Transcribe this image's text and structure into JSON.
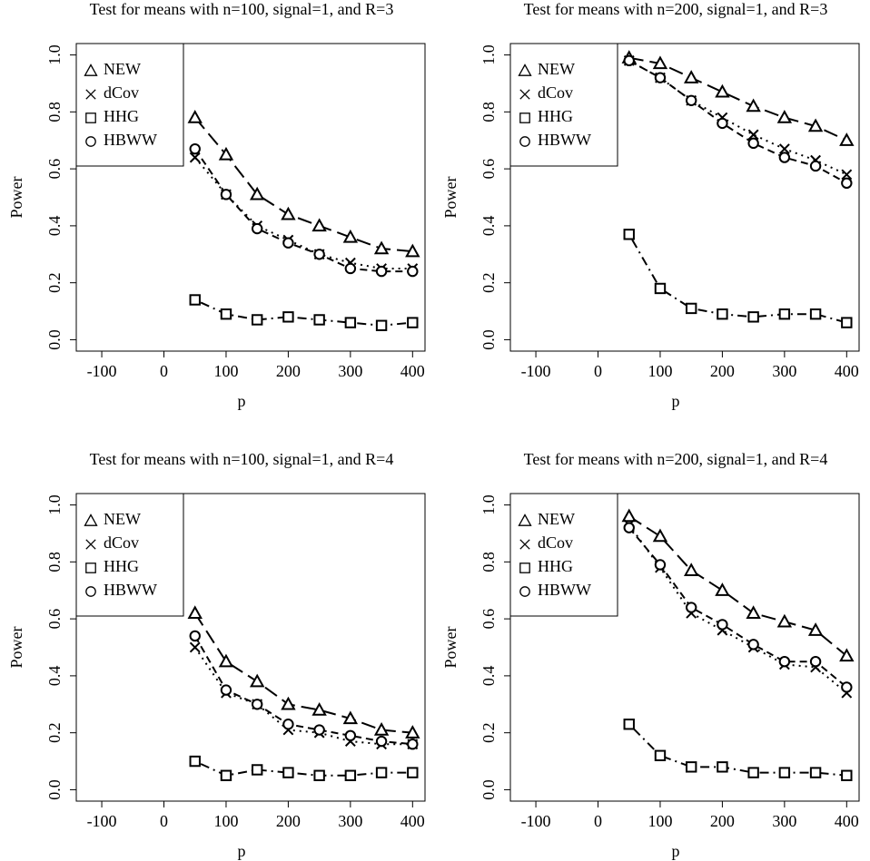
{
  "chart_data": [
    {
      "type": "line",
      "title": "Test for means with n=100, signal=1, and R=3",
      "x_label": "p",
      "y_label": "Power",
      "x": [
        50,
        100,
        150,
        200,
        250,
        300,
        350,
        400
      ],
      "series": [
        {
          "name": "NEW",
          "color": "#000000",
          "marker": "triangle",
          "dash": "longdash",
          "values": [
            0.78,
            0.65,
            0.51,
            0.44,
            0.4,
            0.36,
            0.32,
            0.31
          ]
        },
        {
          "name": "dCov",
          "color": "#000000",
          "marker": "cross",
          "dash": "dotted",
          "values": [
            0.64,
            0.51,
            0.4,
            0.35,
            0.3,
            0.27,
            0.25,
            0.25
          ]
        },
        {
          "name": "HHG",
          "color": "#000000",
          "marker": "square",
          "dash": "dotdash",
          "values": [
            0.14,
            0.09,
            0.07,
            0.08,
            0.07,
            0.06,
            0.05,
            0.06
          ]
        },
        {
          "name": "HBWW",
          "color": "#000000",
          "marker": "circle",
          "dash": "dashed",
          "values": [
            0.67,
            0.51,
            0.39,
            0.34,
            0.3,
            0.25,
            0.24,
            0.24
          ]
        }
      ],
      "xlim": [
        -141,
        420
      ],
      "xticks": [
        -100,
        0,
        100,
        200,
        300,
        400
      ],
      "ylim": [
        -0.04,
        1.04
      ],
      "yticks": [
        {
          "value": 0,
          "label": "0.0"
        },
        0.2,
        0.4,
        0.6,
        0.8,
        {
          "value": 1,
          "label": "1.0"
        }
      ],
      "legend": "top-left"
    },
    {
      "type": "line",
      "title": "Test for means with n=200, signal=1, and R=3",
      "x_label": "p",
      "y_label": "Power",
      "x": [
        50,
        100,
        150,
        200,
        250,
        300,
        350,
        400
      ],
      "series": [
        {
          "name": "NEW",
          "color": "#000000",
          "marker": "triangle",
          "dash": "longdash",
          "values": [
            0.99,
            0.97,
            0.92,
            0.87,
            0.82,
            0.78,
            0.75,
            0.7
          ]
        },
        {
          "name": "dCov",
          "color": "#000000",
          "marker": "cross",
          "dash": "dotted",
          "values": [
            0.98,
            0.92,
            0.84,
            0.78,
            0.72,
            0.67,
            0.63,
            0.58
          ]
        },
        {
          "name": "HHG",
          "color": "#000000",
          "marker": "square",
          "dash": "dotdash",
          "values": [
            0.37,
            0.18,
            0.11,
            0.09,
            0.08,
            0.09,
            0.09,
            0.06
          ]
        },
        {
          "name": "HBWW",
          "color": "#000000",
          "marker": "circle",
          "dash": "dashed",
          "values": [
            0.98,
            0.92,
            0.84,
            0.76,
            0.69,
            0.64,
            0.61,
            0.55
          ]
        }
      ],
      "xlim": [
        -141,
        420
      ],
      "xticks": [
        -100,
        0,
        100,
        200,
        300,
        400
      ],
      "ylim": [
        -0.04,
        1.04
      ],
      "yticks": [
        {
          "value": 0,
          "label": "0.0"
        },
        0.2,
        0.4,
        0.6,
        0.8,
        {
          "value": 1,
          "label": "1.0"
        }
      ],
      "legend": "top-left"
    },
    {
      "type": "line",
      "title": "Test for means with n=100, signal=1, and R=4",
      "x_label": "p",
      "y_label": "Power",
      "x": [
        50,
        100,
        150,
        200,
        250,
        300,
        350,
        400
      ],
      "series": [
        {
          "name": "NEW",
          "color": "#000000",
          "marker": "triangle",
          "dash": "longdash",
          "values": [
            0.62,
            0.45,
            0.38,
            0.3,
            0.28,
            0.25,
            0.21,
            0.2
          ]
        },
        {
          "name": "dCov",
          "color": "#000000",
          "marker": "cross",
          "dash": "dotted",
          "values": [
            0.5,
            0.34,
            0.3,
            0.21,
            0.2,
            0.17,
            0.16,
            0.16
          ]
        },
        {
          "name": "HHG",
          "color": "#000000",
          "marker": "square",
          "dash": "dotdash",
          "values": [
            0.1,
            0.05,
            0.07,
            0.06,
            0.05,
            0.05,
            0.06,
            0.06
          ]
        },
        {
          "name": "HBWW",
          "color": "#000000",
          "marker": "circle",
          "dash": "dashed",
          "values": [
            0.54,
            0.35,
            0.3,
            0.23,
            0.21,
            0.19,
            0.17,
            0.16
          ]
        }
      ],
      "xlim": [
        -141,
        420
      ],
      "xticks": [
        -100,
        0,
        100,
        200,
        300,
        400
      ],
      "ylim": [
        -0.04,
        1.04
      ],
      "yticks": [
        {
          "value": 0,
          "label": "0.0"
        },
        0.2,
        0.4,
        0.6,
        0.8,
        {
          "value": 1,
          "label": "1.0"
        }
      ],
      "legend": "top-left"
    },
    {
      "type": "line",
      "title": "Test for means with n=200, signal=1, and R=4",
      "x_label": "p",
      "y_label": "Power",
      "x": [
        50,
        100,
        150,
        200,
        250,
        300,
        350,
        400
      ],
      "series": [
        {
          "name": "NEW",
          "color": "#000000",
          "marker": "triangle",
          "dash": "longdash",
          "values": [
            0.96,
            0.89,
            0.77,
            0.7,
            0.62,
            0.59,
            0.56,
            0.47
          ]
        },
        {
          "name": "dCov",
          "color": "#000000",
          "marker": "cross",
          "dash": "dotted",
          "values": [
            0.93,
            0.78,
            0.62,
            0.56,
            0.5,
            0.44,
            0.43,
            0.34
          ]
        },
        {
          "name": "HHG",
          "color": "#000000",
          "marker": "square",
          "dash": "dotdash",
          "values": [
            0.23,
            0.12,
            0.08,
            0.08,
            0.06,
            0.06,
            0.06,
            0.05
          ]
        },
        {
          "name": "HBWW",
          "color": "#000000",
          "marker": "circle",
          "dash": "dashed",
          "values": [
            0.92,
            0.79,
            0.64,
            0.58,
            0.51,
            0.45,
            0.45,
            0.36
          ]
        }
      ],
      "xlim": [
        -141,
        420
      ],
      "xticks": [
        -100,
        0,
        100,
        200,
        300,
        400
      ],
      "ylim": [
        -0.04,
        1.04
      ],
      "yticks": [
        {
          "value": 0,
          "label": "0.0"
        },
        0.2,
        0.4,
        0.6,
        0.8,
        {
          "value": 1,
          "label": "1.0"
        }
      ],
      "legend": "top-left"
    }
  ]
}
